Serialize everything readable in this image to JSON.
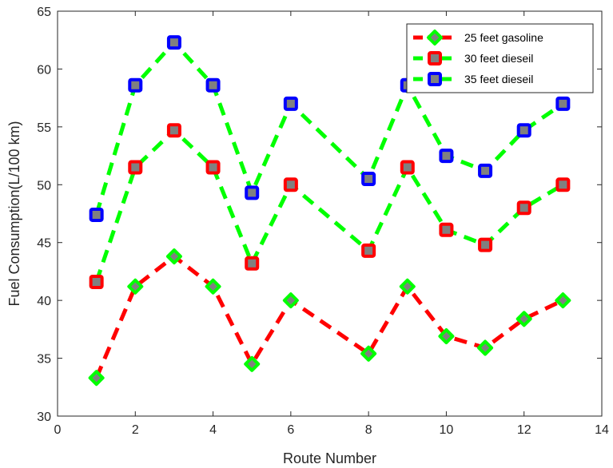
{
  "chart_data": {
    "type": "line",
    "xlabel": "Route Number",
    "ylabel": "Fuel Consumption(L/100 km)",
    "xlim": [
      0,
      14
    ],
    "ylim": [
      30,
      65
    ],
    "xticks": [
      0,
      2,
      4,
      6,
      8,
      10,
      12,
      14
    ],
    "yticks": [
      30,
      35,
      40,
      45,
      50,
      55,
      60,
      65
    ],
    "grid": false,
    "legend_position": "top-right",
    "x": [
      1,
      2,
      3,
      4,
      5,
      6,
      8,
      9,
      10,
      11,
      12,
      13
    ],
    "series": [
      {
        "name": "25 feet gasoline",
        "values": [
          33.3,
          41.2,
          43.8,
          41.2,
          34.5,
          40.0,
          35.4,
          41.2,
          36.9,
          35.9,
          38.4,
          40.0
        ],
        "line_color": "#ff0000",
        "marker": "diamond",
        "marker_edge_color": "#00ff00",
        "marker_face_color": "#808080"
      },
      {
        "name": "30 feet dieseil",
        "values": [
          41.6,
          51.5,
          54.7,
          51.5,
          43.2,
          50.0,
          44.3,
          51.5,
          46.1,
          44.8,
          48.0,
          50.0
        ],
        "line_color": "#00ff00",
        "marker": "square",
        "marker_edge_color": "#ff0000",
        "marker_face_color": "#808080"
      },
      {
        "name": "35 feet dieseil",
        "values": [
          47.4,
          58.6,
          62.3,
          58.6,
          49.3,
          57.0,
          50.5,
          58.6,
          52.5,
          51.2,
          54.7,
          57.0
        ],
        "line_color": "#00ff00",
        "marker": "square",
        "marker_edge_color": "#0000ff",
        "marker_face_color": "#808080"
      }
    ]
  }
}
